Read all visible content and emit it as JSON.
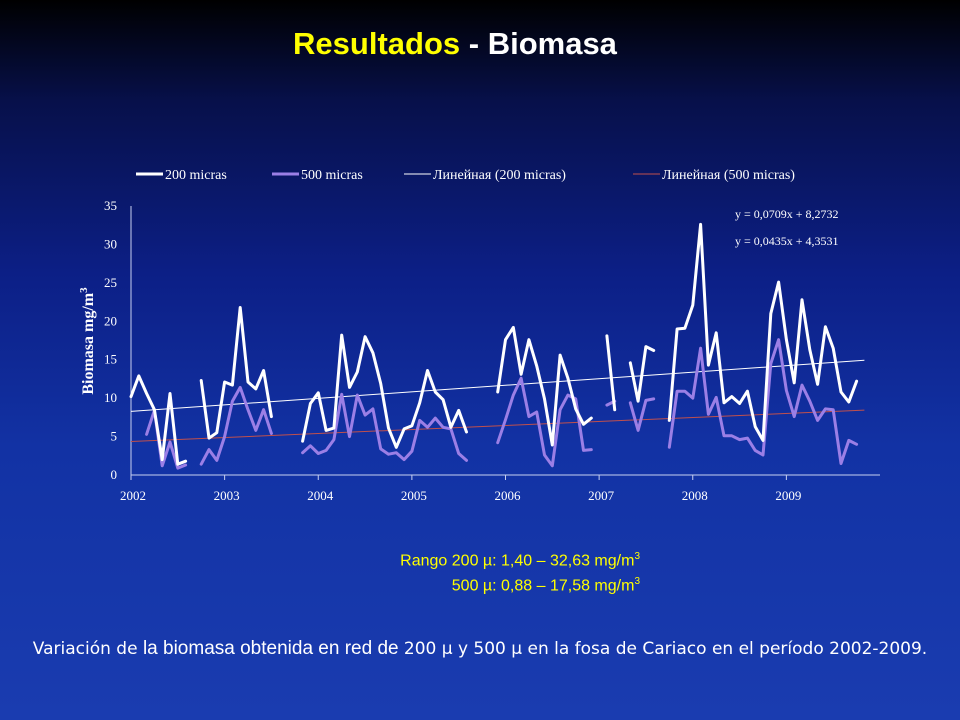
{
  "slide": {
    "title_part1": "Resultados",
    "title_part2": " - Biomasa"
  },
  "ranges": {
    "line1_label": "Rango 200 µ: 1,40 – 32,63 mg/m",
    "line1_sup": "3",
    "line2_label": "500 µ: 0,88 – 17,58 mg/m",
    "line2_sup": "3"
  },
  "caption": {
    "part1": "Variación de ",
    "part2": "la biomasa obtenida en red de ",
    "part3": "200 µ y 500 µ en la fosa de Cariaco en el período 2002-2009."
  },
  "colors": {
    "series_200": "#ffffff",
    "series_500": "#9b7fe6",
    "trend_200": "#ffffff",
    "trend_500": "#c0504d",
    "title_accent": "#ffff00"
  },
  "chart_data": {
    "type": "line",
    "ylabel": "Biomasa mg/m",
    "ylabel_sup": "3",
    "ylim": [
      0,
      35
    ],
    "yticks": [
      0,
      5,
      10,
      15,
      20,
      25,
      30,
      35
    ],
    "xlim": [
      0,
      96
    ],
    "xticks": [
      {
        "label": "2002",
        "month": 0
      },
      {
        "label": "2003",
        "month": 12
      },
      {
        "label": "2004",
        "month": 24
      },
      {
        "label": "2005",
        "month": 36
      },
      {
        "label": "2006",
        "month": 48
      },
      {
        "label": "2007",
        "month": 60
      },
      {
        "label": "2008",
        "month": 72
      },
      {
        "label": "2009",
        "month": 84
      }
    ],
    "legend": {
      "placement": "top",
      "entries": [
        "200 micras",
        "500 micras",
        "Линейная (200 micras)",
        "Линейная (500 micras)"
      ]
    },
    "equations": [
      "y = 0,0709x + 8,2732",
      "y = 0,0435x + 4,3531"
    ],
    "trendlines": [
      {
        "name": "Линейная (200 micras)",
        "slope": 0.0709,
        "intercept": 8.2732
      },
      {
        "name": "Линейная (500 micras)",
        "slope": 0.0435,
        "intercept": 4.3531
      }
    ],
    "series": [
      {
        "name": "200 micras",
        "points": [
          [
            0,
            10.2
          ],
          [
            1,
            12.9
          ],
          [
            2,
            10.6
          ],
          [
            3,
            8.5
          ],
          [
            4,
            2.0
          ],
          [
            5,
            10.6
          ],
          [
            6,
            1.4
          ],
          [
            7,
            1.8
          ],
          [
            9,
            12.3
          ],
          [
            10,
            4.8
          ],
          [
            11,
            5.5
          ],
          [
            12,
            12.1
          ],
          [
            13,
            11.7
          ],
          [
            14,
            21.8
          ],
          [
            15,
            12.1
          ],
          [
            16,
            11.2
          ],
          [
            17,
            13.6
          ],
          [
            18,
            7.6
          ],
          [
            22,
            4.4
          ],
          [
            23,
            9.3
          ],
          [
            24,
            10.7
          ],
          [
            25,
            5.8
          ],
          [
            26,
            6.1
          ],
          [
            27,
            18.2
          ],
          [
            28,
            11.4
          ],
          [
            29,
            13.4
          ],
          [
            30,
            18.0
          ],
          [
            31,
            15.9
          ],
          [
            32,
            11.9
          ],
          [
            33,
            6.1
          ],
          [
            34,
            3.6
          ],
          [
            35,
            6.0
          ],
          [
            36,
            6.4
          ],
          [
            37,
            9.4
          ],
          [
            38,
            13.6
          ],
          [
            39,
            10.8
          ],
          [
            40,
            9.8
          ],
          [
            41,
            6.2
          ],
          [
            42,
            8.4
          ],
          [
            43,
            5.6
          ],
          [
            47,
            10.8
          ],
          [
            48,
            17.6
          ],
          [
            49,
            19.2
          ],
          [
            50,
            13.1
          ],
          [
            51,
            17.6
          ],
          [
            52,
            14.2
          ],
          [
            53,
            9.9
          ],
          [
            54,
            3.9
          ],
          [
            55,
            15.6
          ],
          [
            56,
            12.6
          ],
          [
            57,
            8.6
          ],
          [
            58,
            6.6
          ],
          [
            59,
            7.4
          ],
          [
            61,
            18.1
          ],
          [
            62,
            8.5
          ],
          [
            64,
            14.6
          ],
          [
            65,
            9.6
          ],
          [
            66,
            16.7
          ],
          [
            67,
            16.2
          ],
          [
            69,
            7.1
          ],
          [
            70,
            19.0
          ],
          [
            71,
            19.1
          ],
          [
            72,
            22.1
          ],
          [
            73,
            32.6
          ],
          [
            74,
            14.3
          ],
          [
            75,
            18.5
          ],
          [
            76,
            9.4
          ],
          [
            77,
            10.2
          ],
          [
            78,
            9.3
          ],
          [
            79,
            10.9
          ],
          [
            80,
            6.3
          ],
          [
            81,
            4.5
          ],
          [
            82,
            21.0
          ],
          [
            83,
            25.1
          ],
          [
            84,
            17.6
          ],
          [
            85,
            12.0
          ],
          [
            86,
            22.8
          ],
          [
            87,
            16.3
          ],
          [
            88,
            11.8
          ],
          [
            89,
            19.3
          ],
          [
            90,
            16.5
          ],
          [
            91,
            10.8
          ],
          [
            92,
            9.5
          ],
          [
            93,
            12.2
          ]
        ]
      },
      {
        "name": "500 micras",
        "points": [
          [
            2,
            5.3
          ],
          [
            3,
            8.4
          ],
          [
            4,
            1.2
          ],
          [
            5,
            4.3
          ],
          [
            6,
            0.9
          ],
          [
            7,
            1.3
          ],
          [
            9,
            1.4
          ],
          [
            10,
            3.3
          ],
          [
            11,
            1.9
          ],
          [
            12,
            5.0
          ],
          [
            13,
            9.6
          ],
          [
            14,
            11.4
          ],
          [
            15,
            8.5
          ],
          [
            16,
            5.8
          ],
          [
            17,
            8.5
          ],
          [
            18,
            5.4
          ],
          [
            22,
            2.9
          ],
          [
            23,
            3.8
          ],
          [
            24,
            2.8
          ],
          [
            25,
            3.2
          ],
          [
            26,
            4.6
          ],
          [
            27,
            10.5
          ],
          [
            28,
            5.0
          ],
          [
            29,
            10.4
          ],
          [
            30,
            7.8
          ],
          [
            31,
            8.6
          ],
          [
            32,
            3.4
          ],
          [
            33,
            2.7
          ],
          [
            34,
            2.9
          ],
          [
            35,
            2.0
          ],
          [
            36,
            3.1
          ],
          [
            37,
            7.1
          ],
          [
            38,
            6.2
          ],
          [
            39,
            7.4
          ],
          [
            40,
            6.2
          ],
          [
            41,
            6.0
          ],
          [
            42,
            2.8
          ],
          [
            43,
            1.9
          ],
          [
            47,
            4.2
          ],
          [
            48,
            7.2
          ],
          [
            49,
            10.4
          ],
          [
            50,
            12.6
          ],
          [
            51,
            7.6
          ],
          [
            52,
            8.2
          ],
          [
            53,
            2.6
          ],
          [
            54,
            1.2
          ],
          [
            55,
            8.5
          ],
          [
            56,
            10.4
          ],
          [
            57,
            9.9
          ],
          [
            58,
            3.2
          ],
          [
            59,
            3.3
          ],
          [
            61,
            9.1
          ],
          [
            62,
            9.6
          ],
          [
            64,
            9.4
          ],
          [
            65,
            5.8
          ],
          [
            66,
            9.7
          ],
          [
            67,
            9.9
          ],
          [
            69,
            3.6
          ],
          [
            70,
            10.9
          ],
          [
            71,
            10.9
          ],
          [
            72,
            10.0
          ],
          [
            73,
            16.5
          ],
          [
            74,
            7.9
          ],
          [
            75,
            10.1
          ],
          [
            76,
            5.1
          ],
          [
            77,
            5.1
          ],
          [
            78,
            4.6
          ],
          [
            79,
            4.8
          ],
          [
            80,
            3.2
          ],
          [
            81,
            2.6
          ],
          [
            82,
            14.5
          ],
          [
            83,
            17.6
          ],
          [
            84,
            11.0
          ],
          [
            85,
            7.6
          ],
          [
            86,
            11.7
          ],
          [
            87,
            9.6
          ],
          [
            88,
            7.1
          ],
          [
            89,
            8.6
          ],
          [
            90,
            8.5
          ],
          [
            91,
            1.5
          ],
          [
            92,
            4.5
          ],
          [
            93,
            4.0
          ]
        ]
      }
    ]
  }
}
